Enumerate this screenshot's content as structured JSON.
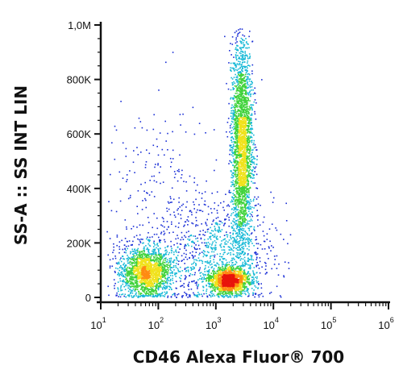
{
  "chart_data": {
    "type": "scatter",
    "style": "flow-cytometry density dot plot",
    "xlabel": "CD46 Alexa Fluor® 700",
    "ylabel": "SS-A :: SS INT LIN",
    "x_scale": "log",
    "xlim": [
      10,
      1000000
    ],
    "x_ticks": [
      {
        "value": 10,
        "base": "10",
        "exp": "1"
      },
      {
        "value": 100,
        "base": "10",
        "exp": "2"
      },
      {
        "value": 1000,
        "base": "10",
        "exp": "3"
      },
      {
        "value": 10000,
        "base": "10",
        "exp": "4"
      },
      {
        "value": 100000,
        "base": "10",
        "exp": "5"
      },
      {
        "value": 1000000,
        "base": "10",
        "exp": "6"
      }
    ],
    "y_scale": "linear",
    "ylim": [
      0,
      1000000
    ],
    "y_ticks": [
      {
        "value": 0,
        "label": "0"
      },
      {
        "value": 200000,
        "label": "200K"
      },
      {
        "value": 400000,
        "label": "400K"
      },
      {
        "value": 600000,
        "label": "600K"
      },
      {
        "value": 800000,
        "label": "800K"
      },
      {
        "value": 1000000,
        "label": "1,0M"
      }
    ],
    "populations": [
      {
        "center_x": 60,
        "center_y": 95000,
        "spread_log_x": 0.22,
        "spread_y": 45000,
        "count": 1800
      },
      {
        "center_x": 1700,
        "center_y": 65000,
        "spread_log_x": 0.17,
        "spread_y": 22000,
        "count": 1500
      },
      {
        "center_x": 2800,
        "center_y": 560000,
        "spread_log_x": 0.09,
        "spread_y": 190000,
        "count": 2600
      },
      {
        "center_x": 1200,
        "center_y": 150000,
        "spread_log_x": 0.45,
        "spread_y": 100000,
        "count": 900
      },
      {
        "center_x": 120,
        "center_y": 300000,
        "spread_log_x": 0.5,
        "spread_y": 220000,
        "count": 350
      }
    ],
    "density_colors": [
      "#1a2fd6",
      "#15b8d6",
      "#3fd23a",
      "#f0e21c",
      "#ff8a12",
      "#e8140c"
    ],
    "grid": false,
    "legend": "none"
  }
}
